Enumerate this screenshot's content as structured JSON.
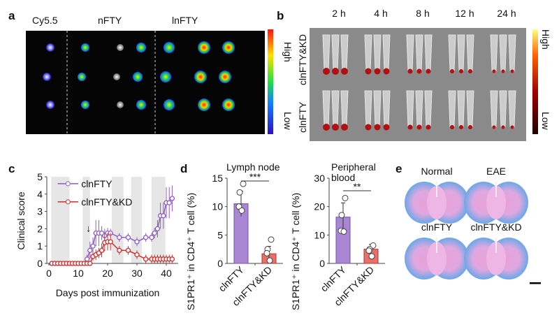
{
  "panels": {
    "a": {
      "label": "a",
      "columns": [
        "Cy5.5",
        "nFTY",
        "lnFTY"
      ],
      "colorbar": {
        "high": "High",
        "low": "Low"
      }
    },
    "b": {
      "label": "b",
      "times": [
        "2 h",
        "4 h",
        "8 h",
        "12 h",
        "24 h"
      ],
      "rows": [
        "clnFTY&KD",
        "clnFTY"
      ],
      "colorbar": {
        "high": "High",
        "low": "Low"
      }
    },
    "c": {
      "label": "c"
    },
    "d": {
      "label": "d"
    },
    "e": {
      "label": "e",
      "images": [
        "Normal",
        "EAE",
        "clnFTY",
        "clnFTY&KD"
      ]
    }
  },
  "chart_data": [
    {
      "type": "line",
      "panel": "c",
      "xlabel": "Days post immunization",
      "ylabel": "Clinical score",
      "xlim": [
        0,
        44
      ],
      "ylim": [
        0,
        5
      ],
      "xticks": [
        0,
        10,
        20,
        30,
        40
      ],
      "yticks": [
        0,
        1,
        2,
        3,
        4,
        5
      ],
      "legend": "top-left",
      "annotation": "↓",
      "annotation_day": 13.5,
      "series": [
        {
          "name": "clnFTY",
          "color": "#8e5cc4",
          "x": [
            1,
            2,
            3,
            4,
            5,
            6,
            7,
            8,
            9,
            10,
            11,
            12,
            13,
            14,
            15,
            16,
            17,
            18,
            19,
            20,
            21,
            24,
            27,
            30,
            33,
            35,
            36,
            37,
            38,
            39,
            40,
            41,
            42
          ],
          "y": [
            0,
            0,
            0,
            0,
            0,
            0,
            0,
            0,
            0,
            0,
            0,
            0,
            0.25,
            0.75,
            1.0,
            1.75,
            1.75,
            1.75,
            1.6,
            1.75,
            1.75,
            1.5,
            1.5,
            1.25,
            1.5,
            1.5,
            1.75,
            2.0,
            2.75,
            2.75,
            3.5,
            3.5,
            3.75
          ],
          "err": [
            0,
            0,
            0,
            0,
            0,
            0,
            0,
            0,
            0,
            0,
            0,
            0,
            0.25,
            0.5,
            0.5,
            0.75,
            0.75,
            0.4,
            0.4,
            0.3,
            0.25,
            0.25,
            0.25,
            0.25,
            0.25,
            0.25,
            0.3,
            0.5,
            0.75,
            0.75,
            0.9,
            0.9,
            0.75
          ]
        },
        {
          "name": "clnFTY&KD",
          "color": "#d42a2a",
          "x": [
            1,
            2,
            3,
            4,
            5,
            6,
            7,
            8,
            9,
            10,
            11,
            12,
            13,
            14,
            15,
            16,
            17,
            18,
            19,
            20,
            21,
            24,
            27,
            30,
            33,
            35,
            36,
            37,
            38,
            39,
            40,
            41,
            42
          ],
          "y": [
            0,
            0,
            0,
            0,
            0,
            0,
            0,
            0,
            0,
            0,
            0,
            0,
            0,
            0,
            0.4,
            0.5,
            0.6,
            0.75,
            1.2,
            1.25,
            1.25,
            0.75,
            0.75,
            0.5,
            0.25,
            0.25,
            0.25,
            0.25,
            0.25,
            0.25,
            0.25,
            0.25,
            0.25
          ],
          "err": [
            0,
            0,
            0,
            0,
            0,
            0,
            0,
            0,
            0,
            0,
            0,
            0,
            0,
            0,
            0.25,
            0.3,
            0.3,
            0.4,
            0.5,
            0.5,
            0.5,
            0.25,
            0.25,
            0.25,
            0.25,
            0.25,
            0.25,
            0.25,
            0.25,
            0.25,
            0.25,
            0.25,
            0.25
          ]
        }
      ]
    },
    {
      "type": "bar",
      "panel": "d",
      "title": "Lymph node",
      "ylabel": "S1PR1⁺ in CD4⁺ T cell (%)",
      "ylim": [
        0,
        15
      ],
      "yticks": [
        0,
        5,
        10,
        15
      ],
      "categories": [
        "clnFTY",
        "clnFTY&KD"
      ],
      "values": [
        10.5,
        1.7
      ],
      "sd": [
        2.2,
        1.3
      ],
      "points": [
        [
          14,
          12.5,
          10,
          9.3
        ],
        [
          4.2,
          2.5,
          1.8,
          0.5
        ]
      ],
      "colors": [
        "#a886d1",
        "#e8706a"
      ],
      "significance": "***"
    },
    {
      "type": "bar",
      "panel": "d",
      "title": "Peripheral blood",
      "title_lines": [
        "Peripheral",
        "blood"
      ],
      "ylabel": "S1PR1⁺ in CD4⁺ T cell (%)",
      "ylim": [
        0,
        30
      ],
      "yticks": [
        0,
        10,
        20,
        30
      ],
      "categories": [
        "clnFTY",
        "clnFTY&KD"
      ],
      "values": [
        16.3,
        5.0
      ],
      "sd": [
        5.0,
        1.7
      ],
      "points": [
        [
          23,
          17,
          11.5,
          11.2
        ],
        [
          6.3,
          5,
          4.5,
          2.5
        ]
      ],
      "colors": [
        "#a886d1",
        "#e8706a"
      ],
      "significance": "**"
    }
  ]
}
